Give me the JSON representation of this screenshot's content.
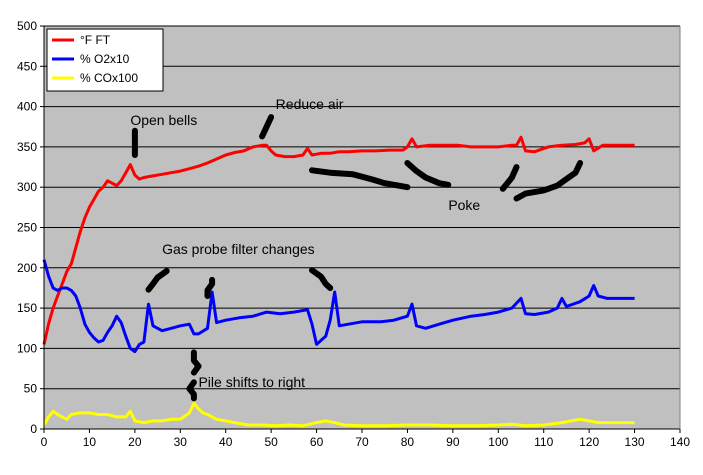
{
  "chart_data": {
    "type": "line",
    "title": "",
    "xlabel": "",
    "ylabel": "",
    "xlim": [
      0,
      140
    ],
    "ylim": [
      0,
      500
    ],
    "xticks": [
      0,
      10,
      20,
      30,
      40,
      50,
      60,
      70,
      80,
      90,
      100,
      110,
      120,
      130,
      140
    ],
    "yticks": [
      0,
      50,
      100,
      150,
      200,
      250,
      300,
      350,
      400,
      450,
      500
    ],
    "grid": "horizontal",
    "background": "#c0c0c0",
    "legend": "top-left",
    "series": [
      {
        "name": "°F FT",
        "color": "#ff0000",
        "points": [
          [
            0,
            105
          ],
          [
            1,
            130
          ],
          [
            2,
            150
          ],
          [
            3,
            165
          ],
          [
            4,
            180
          ],
          [
            5,
            195
          ],
          [
            6,
            205
          ],
          [
            7,
            225
          ],
          [
            8,
            245
          ],
          [
            9,
            262
          ],
          [
            10,
            275
          ],
          [
            11,
            285
          ],
          [
            12,
            295
          ],
          [
            13,
            300
          ],
          [
            14,
            308
          ],
          [
            15,
            305
          ],
          [
            16,
            302
          ],
          [
            17,
            308
          ],
          [
            18,
            318
          ],
          [
            19,
            328
          ],
          [
            20,
            315
          ],
          [
            21,
            310
          ],
          [
            22,
            312
          ],
          [
            24,
            314
          ],
          [
            26,
            316
          ],
          [
            28,
            318
          ],
          [
            30,
            320
          ],
          [
            32,
            323
          ],
          [
            34,
            326
          ],
          [
            36,
            330
          ],
          [
            38,
            335
          ],
          [
            40,
            340
          ],
          [
            42,
            343
          ],
          [
            44,
            345
          ],
          [
            46,
            350
          ],
          [
            48,
            352
          ],
          [
            49,
            352
          ],
          [
            50,
            345
          ],
          [
            51,
            340
          ],
          [
            53,
            338
          ],
          [
            55,
            338
          ],
          [
            57,
            340
          ],
          [
            58,
            348
          ],
          [
            59,
            340
          ],
          [
            61,
            342
          ],
          [
            63,
            342
          ],
          [
            65,
            344
          ],
          [
            67,
            344
          ],
          [
            70,
            345
          ],
          [
            73,
            345
          ],
          [
            76,
            346
          ],
          [
            79,
            346
          ],
          [
            80,
            350
          ],
          [
            81,
            360
          ],
          [
            82,
            350
          ],
          [
            85,
            352
          ],
          [
            88,
            352
          ],
          [
            91,
            352
          ],
          [
            94,
            350
          ],
          [
            97,
            350
          ],
          [
            100,
            350
          ],
          [
            103,
            352
          ],
          [
            104,
            352
          ],
          [
            105,
            362
          ],
          [
            106,
            345
          ],
          [
            108,
            344
          ],
          [
            111,
            350
          ],
          [
            114,
            352
          ],
          [
            117,
            353
          ],
          [
            119,
            355
          ],
          [
            120,
            360
          ],
          [
            121,
            345
          ],
          [
            123,
            352
          ],
          [
            126,
            352
          ],
          [
            130,
            352
          ]
        ]
      },
      {
        "name": "% O2x10",
        "color": "#0000ff",
        "points": [
          [
            0,
            210
          ],
          [
            1,
            190
          ],
          [
            2,
            175
          ],
          [
            3,
            172
          ],
          [
            4,
            175
          ],
          [
            5,
            175
          ],
          [
            6,
            172
          ],
          [
            7,
            165
          ],
          [
            8,
            150
          ],
          [
            9,
            130
          ],
          [
            10,
            120
          ],
          [
            11,
            113
          ],
          [
            12,
            108
          ],
          [
            13,
            110
          ],
          [
            14,
            120
          ],
          [
            15,
            128
          ],
          [
            16,
            140
          ],
          [
            17,
            132
          ],
          [
            18,
            115
          ],
          [
            19,
            100
          ],
          [
            20,
            96
          ],
          [
            21,
            105
          ],
          [
            22,
            108
          ],
          [
            23,
            155
          ],
          [
            24,
            128
          ],
          [
            26,
            122
          ],
          [
            28,
            125
          ],
          [
            30,
            128
          ],
          [
            32,
            130
          ],
          [
            33,
            118
          ],
          [
            34,
            118
          ],
          [
            36,
            125
          ],
          [
            37,
            170
          ],
          [
            38,
            132
          ],
          [
            40,
            135
          ],
          [
            43,
            138
          ],
          [
            46,
            140
          ],
          [
            49,
            145
          ],
          [
            52,
            143
          ],
          [
            55,
            145
          ],
          [
            58,
            148
          ],
          [
            59,
            130
          ],
          [
            60,
            105
          ],
          [
            61,
            110
          ],
          [
            62,
            115
          ],
          [
            63,
            135
          ],
          [
            64,
            170
          ],
          [
            65,
            128
          ],
          [
            67,
            130
          ],
          [
            70,
            133
          ],
          [
            74,
            133
          ],
          [
            77,
            135
          ],
          [
            80,
            140
          ],
          [
            81,
            155
          ],
          [
            82,
            128
          ],
          [
            84,
            125
          ],
          [
            87,
            130
          ],
          [
            90,
            135
          ],
          [
            94,
            140
          ],
          [
            97,
            142
          ],
          [
            100,
            145
          ],
          [
            103,
            150
          ],
          [
            105,
            162
          ],
          [
            106,
            143
          ],
          [
            108,
            142
          ],
          [
            111,
            145
          ],
          [
            113,
            150
          ],
          [
            114,
            162
          ],
          [
            115,
            152
          ],
          [
            118,
            158
          ],
          [
            120,
            165
          ],
          [
            121,
            178
          ],
          [
            122,
            165
          ],
          [
            124,
            162
          ],
          [
            127,
            162
          ],
          [
            130,
            162
          ]
        ]
      },
      {
        "name": "% COx100",
        "color": "#ffff00",
        "points": [
          [
            0,
            5
          ],
          [
            1,
            15
          ],
          [
            2,
            22
          ],
          [
            3,
            18
          ],
          [
            4,
            15
          ],
          [
            5,
            12
          ],
          [
            6,
            18
          ],
          [
            8,
            20
          ],
          [
            10,
            20
          ],
          [
            12,
            18
          ],
          [
            14,
            18
          ],
          [
            16,
            15
          ],
          [
            18,
            15
          ],
          [
            19,
            22
          ],
          [
            20,
            10
          ],
          [
            22,
            8
          ],
          [
            24,
            10
          ],
          [
            26,
            10
          ],
          [
            28,
            12
          ],
          [
            30,
            12
          ],
          [
            32,
            20
          ],
          [
            33,
            32
          ],
          [
            34,
            25
          ],
          [
            35,
            20
          ],
          [
            36,
            18
          ],
          [
            38,
            12
          ],
          [
            40,
            10
          ],
          [
            42,
            8
          ],
          [
            45,
            5
          ],
          [
            48,
            5
          ],
          [
            51,
            4
          ],
          [
            54,
            5
          ],
          [
            57,
            4
          ],
          [
            60,
            8
          ],
          [
            62,
            10
          ],
          [
            64,
            8
          ],
          [
            66,
            5
          ],
          [
            70,
            4
          ],
          [
            75,
            4
          ],
          [
            80,
            5
          ],
          [
            85,
            5
          ],
          [
            90,
            4
          ],
          [
            95,
            4
          ],
          [
            100,
            5
          ],
          [
            103,
            6
          ],
          [
            106,
            4
          ],
          [
            110,
            5
          ],
          [
            114,
            8
          ],
          [
            118,
            12
          ],
          [
            120,
            10
          ],
          [
            122,
            8
          ],
          [
            126,
            8
          ],
          [
            130,
            8
          ]
        ]
      }
    ],
    "annotations": [
      {
        "text": "Open bells",
        "x": 19,
        "y": 377
      },
      {
        "text": "Reduce air",
        "x": 51,
        "y": 397
      },
      {
        "text": "Poke",
        "x": 89,
        "y": 272
      },
      {
        "text": "Gas probe filter changes",
        "x": 26,
        "y": 217
      },
      {
        "text": "Pile shifts to right",
        "x": 34,
        "y": 52
      }
    ],
    "strokes": [
      [
        [
          20,
          340
        ],
        [
          20,
          355
        ],
        [
          20,
          370
        ]
      ],
      [
        [
          48,
          363
        ],
        [
          49,
          375
        ],
        [
          50,
          387
        ]
      ],
      [
        [
          59,
          321
        ],
        [
          63,
          318
        ],
        [
          68,
          316
        ],
        [
          72,
          310
        ],
        [
          75,
          305
        ],
        [
          78,
          302
        ],
        [
          80,
          300
        ]
      ],
      [
        [
          80,
          330
        ],
        [
          82,
          320
        ],
        [
          84,
          312
        ],
        [
          87,
          305
        ],
        [
          89,
          303
        ]
      ],
      [
        [
          101,
          298
        ],
        [
          102,
          305
        ],
        [
          103,
          312
        ],
        [
          104,
          325
        ]
      ],
      [
        [
          104,
          286
        ],
        [
          106,
          292
        ],
        [
          110,
          296
        ],
        [
          113,
          302
        ],
        [
          115,
          310
        ],
        [
          117,
          318
        ],
        [
          118,
          330
        ]
      ],
      [
        [
          23,
          173
        ],
        [
          24,
          180
        ],
        [
          25,
          188
        ],
        [
          27,
          196
        ]
      ],
      [
        [
          36,
          165
        ],
        [
          36,
          172
        ],
        [
          37,
          180
        ],
        [
          37,
          185
        ]
      ],
      [
        [
          59,
          197
        ],
        [
          61,
          189
        ],
        [
          62,
          180
        ],
        [
          63,
          175
        ]
      ],
      [
        [
          33,
          95
        ],
        [
          33,
          85
        ],
        [
          34,
          78
        ],
        [
          33,
          70
        ]
      ],
      [
        [
          33,
          58
        ],
        [
          32,
          50
        ],
        [
          33,
          43
        ],
        [
          33,
          38
        ]
      ]
    ]
  }
}
